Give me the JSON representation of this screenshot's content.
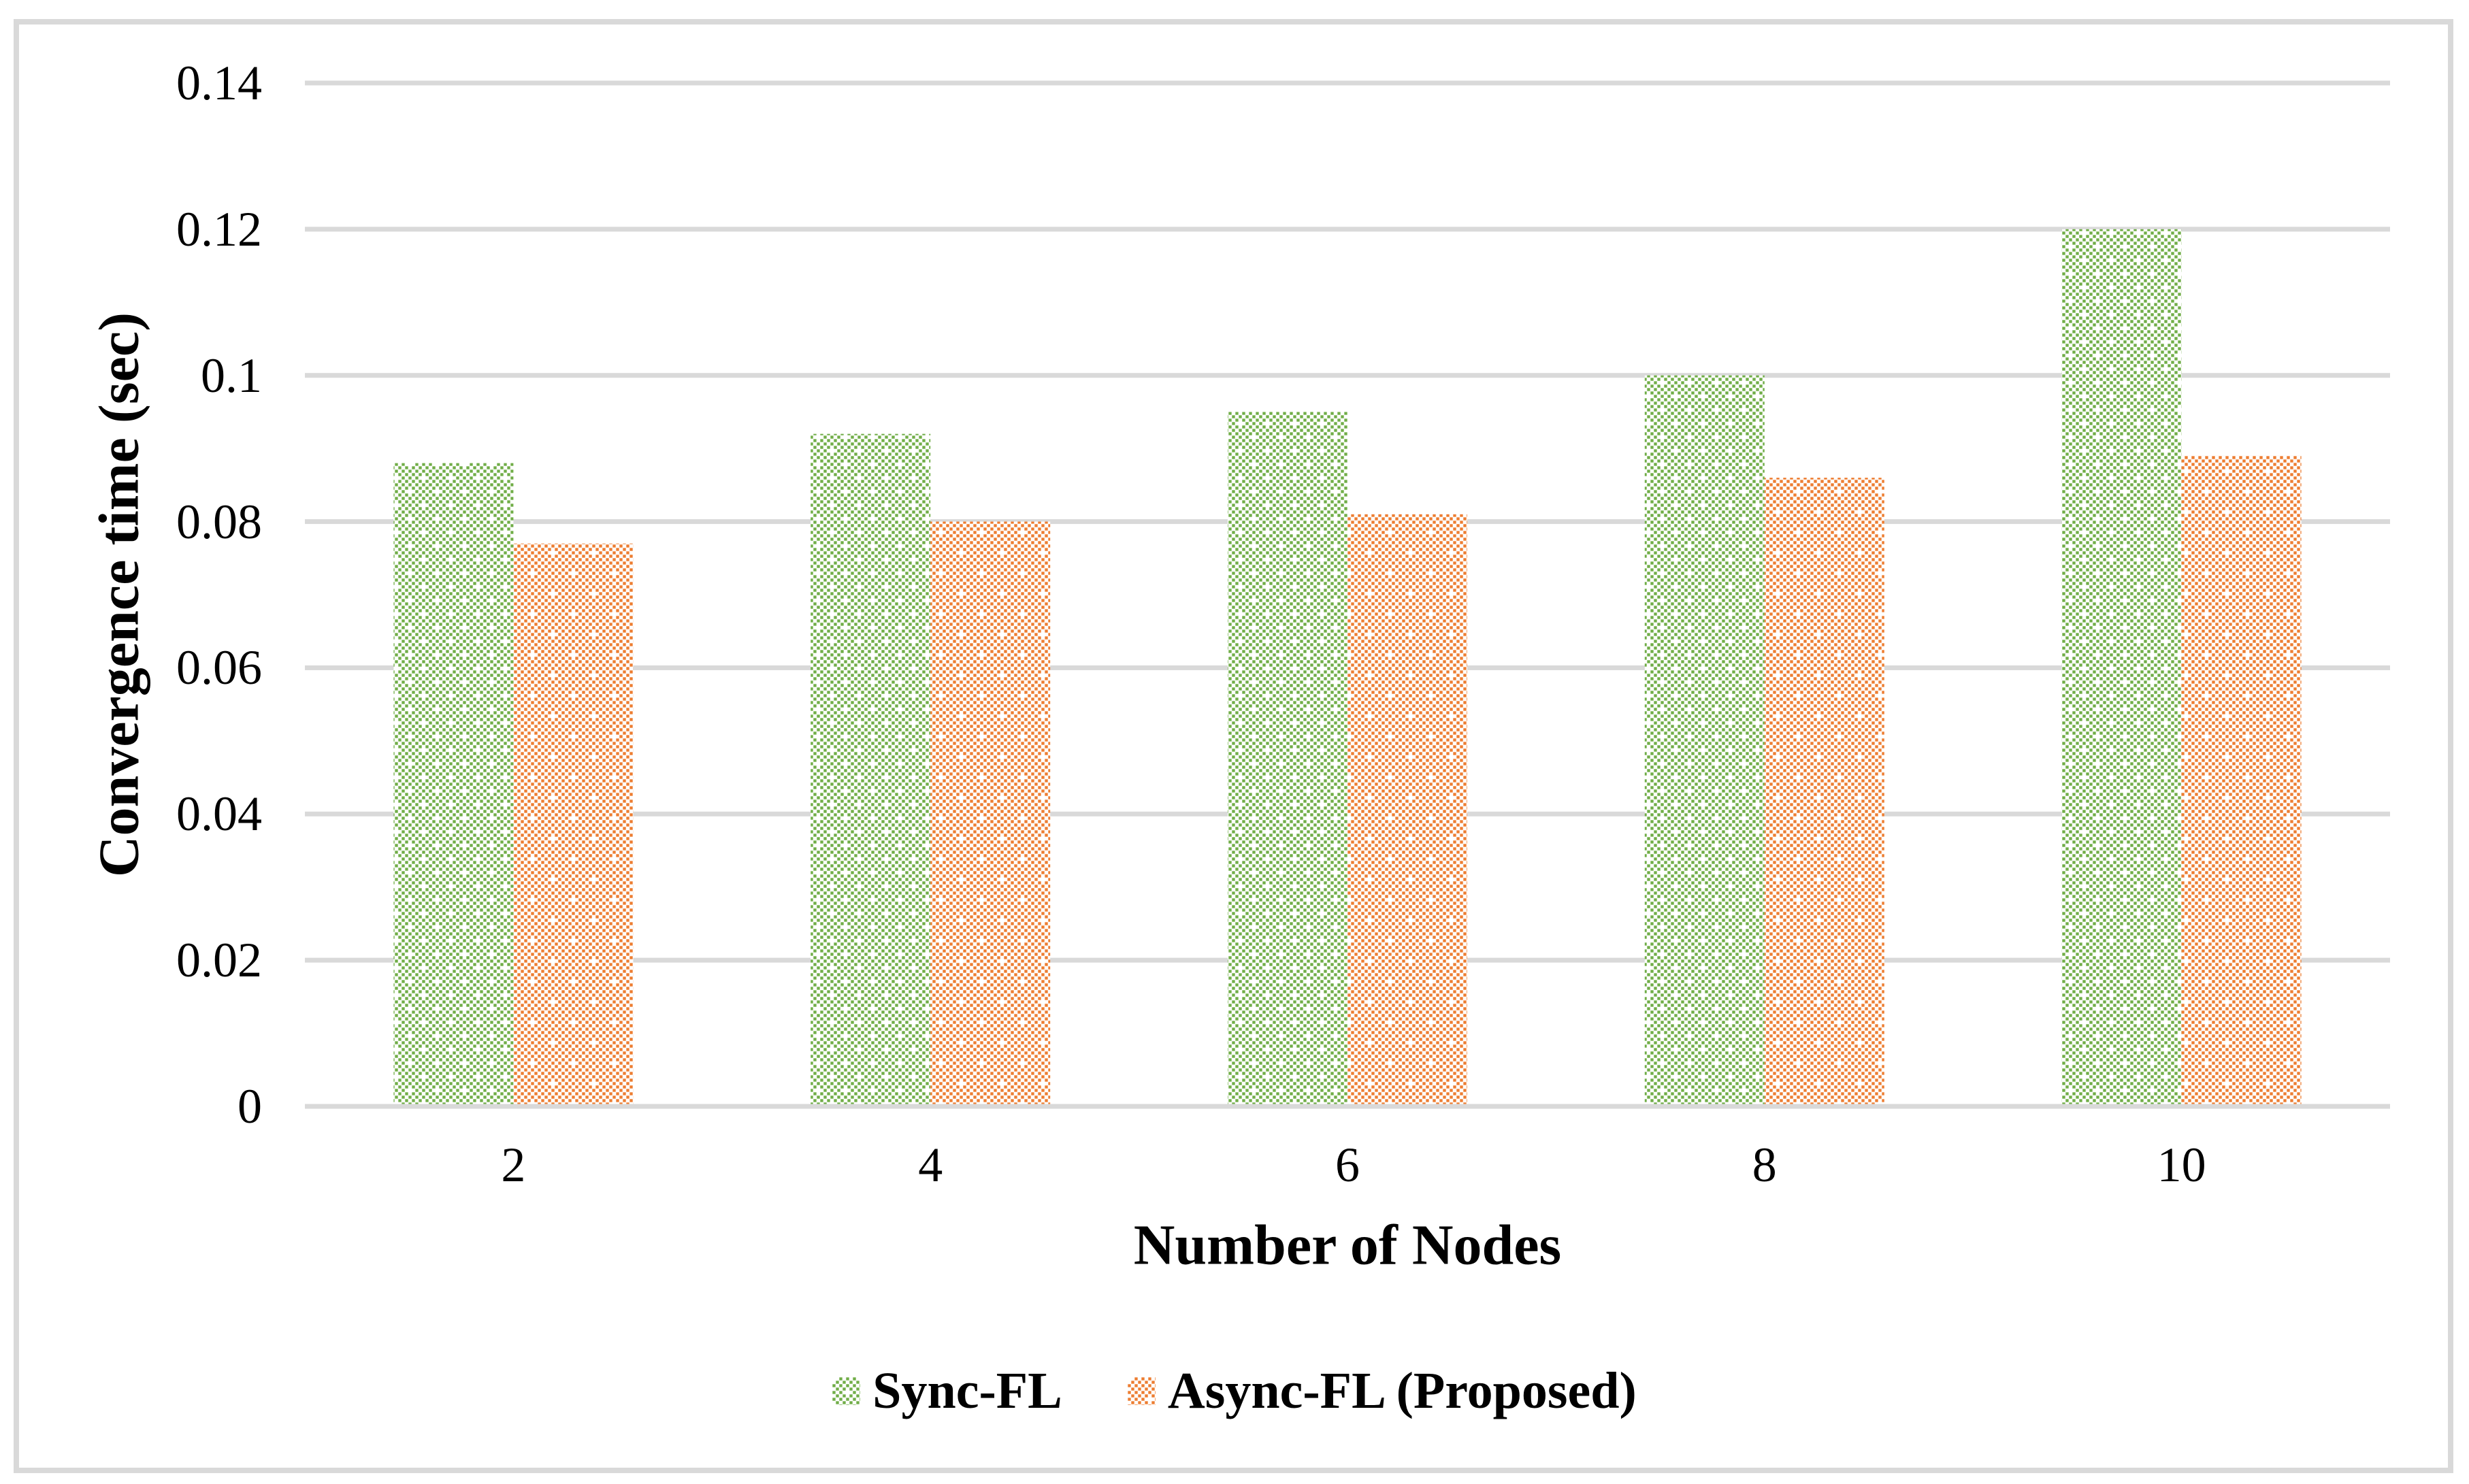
{
  "chart_data": {
    "type": "bar",
    "title": "",
    "categories": [
      "2",
      "4",
      "6",
      "8",
      "10"
    ],
    "series": [
      {
        "name": "Sync-FL",
        "color": "#70AD47",
        "pattern": "dotted-diamond",
        "values": [
          0.088,
          0.092,
          0.095,
          0.1,
          0.12
        ]
      },
      {
        "name": "Async-FL (Proposed)",
        "color": "#ED7D31",
        "pattern": "dotted-grid",
        "values": [
          0.077,
          0.08,
          0.081,
          0.086,
          0.089
        ]
      }
    ],
    "xlabel": "Number of Nodes",
    "ylabel": "Convergence time (sec)",
    "ylim": [
      0,
      0.14
    ],
    "ytick_step": 0.02,
    "ytick_labels": [
      "0",
      "0.02",
      "0.04",
      "0.06",
      "0.08",
      "0.1",
      "0.12",
      "0.14"
    ],
    "grid": true,
    "gridline_color": "#D9D9D9",
    "frame_color": "#D9D9D9",
    "background": "#FFFFFF",
    "text_color": "#000000",
    "legend_position": "bottom"
  }
}
